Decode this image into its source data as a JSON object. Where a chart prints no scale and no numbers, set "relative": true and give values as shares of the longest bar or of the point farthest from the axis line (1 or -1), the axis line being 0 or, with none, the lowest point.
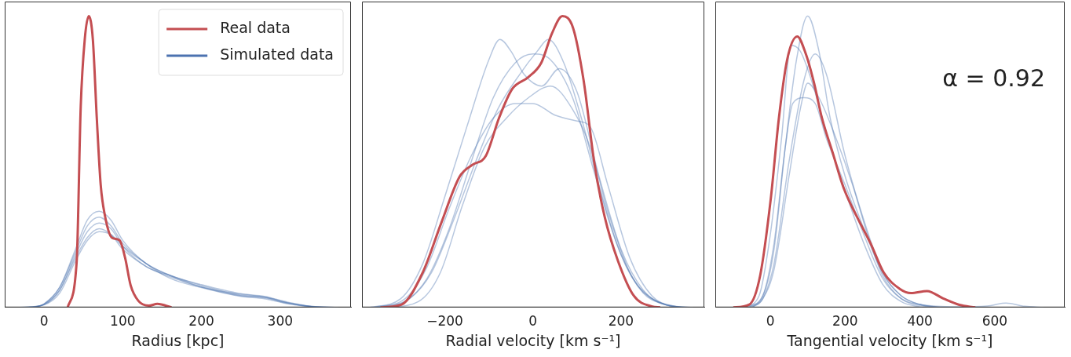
{
  "chart_data": [
    {
      "type": "line",
      "relative": true,
      "xlabel": "Radius [kpc]",
      "xlim": [
        -50,
        390
      ],
      "xticks": [
        0,
        100,
        200,
        300
      ],
      "tick_labels": "x",
      "legend": "top right",
      "series": [
        {
          "name": "Real data",
          "color": "#c44e52",
          "x": [
            30,
            41.5,
            46.6,
            51.7,
            56.8,
            62,
            67,
            72,
            77,
            86,
            96,
            103,
            110,
            120,
            133,
            144,
            162
          ],
          "values": [
            0,
            0.16,
            0.69,
            0.92,
            1.0,
            0.92,
            0.65,
            0.42,
            0.32,
            0.24,
            0.23,
            0.17,
            0.076,
            0.022,
            0.006,
            0.012,
            0
          ]
        },
        {
          "name": "Simulated data",
          "color": "#4c72b0",
          "x": [
            -20,
            0,
            20,
            40,
            55,
            70,
            85,
            100,
            130,
            160,
            200,
            250,
            280,
            310,
            340,
            370
          ],
          "values": [
            0,
            0.01,
            0.06,
            0.17,
            0.24,
            0.27,
            0.25,
            0.2,
            0.14,
            0.105,
            0.07,
            0.04,
            0.035,
            0.015,
            0.003,
            0
          ]
        },
        {
          "color": "#4c72b0",
          "x": [
            -25,
            0,
            20,
            40,
            55,
            70,
            85,
            100,
            130,
            160,
            200,
            250,
            280,
            310,
            340,
            362
          ],
          "values": [
            0,
            0.01,
            0.06,
            0.18,
            0.26,
            0.29,
            0.27,
            0.21,
            0.14,
            0.11,
            0.075,
            0.042,
            0.033,
            0.014,
            0.003,
            0
          ]
        },
        {
          "color": "#4c72b0",
          "x": [
            -15,
            0,
            20,
            40,
            55,
            70,
            85,
            100,
            130,
            160,
            200,
            250,
            280,
            310,
            340,
            356
          ],
          "values": [
            0,
            0.012,
            0.07,
            0.19,
            0.28,
            0.31,
            0.28,
            0.22,
            0.15,
            0.1,
            0.068,
            0.038,
            0.03,
            0.012,
            0.002,
            0
          ]
        },
        {
          "color": "#4c72b0",
          "x": [
            -12,
            0,
            20,
            40,
            55,
            70,
            85,
            100,
            130,
            160,
            200,
            250,
            280,
            310,
            340,
            366
          ],
          "values": [
            0,
            0.012,
            0.07,
            0.2,
            0.3,
            0.33,
            0.3,
            0.23,
            0.15,
            0.11,
            0.07,
            0.045,
            0.036,
            0.016,
            0.003,
            0
          ]
        },
        {
          "color": "#4c72b0",
          "x": [
            -30,
            0,
            20,
            40,
            55,
            70,
            85,
            100,
            130,
            160,
            200,
            250,
            280,
            310,
            340,
            374
          ],
          "values": [
            0,
            0.009,
            0.05,
            0.16,
            0.23,
            0.26,
            0.25,
            0.21,
            0.15,
            0.11,
            0.078,
            0.047,
            0.038,
            0.018,
            0.004,
            0
          ]
        }
      ]
    },
    {
      "type": "line",
      "relative": true,
      "xlabel": "Radial velocity [km s⁻¹]",
      "xlim": [
        -388,
        389
      ],
      "xticks": [
        {
          "value": -200,
          "label": "−200"
        },
        0,
        200
      ],
      "tick_labels": "x",
      "series": [
        {
          "color": "#c44e52",
          "x": [
            -346,
            -298,
            -250,
            -208,
            -166,
            -137,
            -107,
            -77,
            -47,
            -11,
            19,
            43,
            67,
            91,
            115,
            139,
            163,
            193,
            229,
            271,
            289
          ],
          "values": [
            0,
            0.01,
            0.12,
            0.29,
            0.45,
            0.49,
            0.52,
            0.65,
            0.75,
            0.79,
            0.84,
            0.94,
            1.0,
            0.96,
            0.78,
            0.5,
            0.31,
            0.16,
            0.04,
            0.003,
            0
          ]
        },
        {
          "color": "#4c72b0",
          "x": [
            -370,
            -300,
            -250,
            -200,
            -150,
            -100,
            -75,
            -50,
            -20,
            20,
            60,
            100,
            150,
            200,
            250,
            300,
            352
          ],
          "values": [
            0,
            0.03,
            0.15,
            0.38,
            0.62,
            0.85,
            0.92,
            0.88,
            0.8,
            0.76,
            0.82,
            0.74,
            0.45,
            0.2,
            0.06,
            0.01,
            0
          ]
        },
        {
          "color": "#4c72b0",
          "x": [
            -352,
            -280,
            -230,
            -180,
            -130,
            -80,
            -30,
            10,
            35,
            70,
            110,
            150,
            200,
            250,
            300,
            346
          ],
          "values": [
            0,
            0.03,
            0.12,
            0.3,
            0.5,
            0.68,
            0.8,
            0.88,
            0.92,
            0.84,
            0.65,
            0.42,
            0.18,
            0.05,
            0.01,
            0
          ]
        },
        {
          "color": "#4c72b0",
          "x": [
            -362,
            -290,
            -240,
            -190,
            -140,
            -90,
            -40,
            0,
            50,
            100,
            130,
            170,
            220,
            270,
            320,
            364
          ],
          "values": [
            0,
            0.03,
            0.14,
            0.34,
            0.52,
            0.65,
            0.7,
            0.7,
            0.66,
            0.64,
            0.62,
            0.42,
            0.17,
            0.04,
            0.005,
            0
          ]
        },
        {
          "color": "#4c72b0",
          "x": [
            -344,
            -290,
            -240,
            -190,
            -140,
            -90,
            -40,
            0,
            40,
            90,
            140,
            190,
            240,
            290,
            338
          ],
          "values": [
            0,
            0.02,
            0.1,
            0.27,
            0.5,
            0.72,
            0.84,
            0.87,
            0.85,
            0.72,
            0.46,
            0.22,
            0.07,
            0.015,
            0
          ]
        },
        {
          "color": "#4c72b0",
          "x": [
            -330,
            -260,
            -210,
            -160,
            -110,
            -60,
            -10,
            40,
            90,
            130,
            170,
            220,
            270,
            322
          ],
          "values": [
            0,
            0.02,
            0.12,
            0.35,
            0.55,
            0.65,
            0.72,
            0.76,
            0.68,
            0.55,
            0.33,
            0.12,
            0.03,
            0
          ]
        }
      ]
    },
    {
      "type": "line",
      "relative": true,
      "xlabel": "Tangential velocity [km s⁻¹]",
      "xlim": [
        -147,
        787
      ],
      "xticks": [
        0,
        200,
        400,
        600
      ],
      "tick_labels": "x",
      "annotations": [
        "α = 0.92"
      ],
      "series": [
        {
          "color": "#c44e52",
          "x": [
            -99,
            -56,
            -27,
            1,
            23,
            45,
            72,
            95,
            117,
            138,
            167,
            196,
            232,
            268,
            303,
            347,
            376,
            419,
            462,
            505,
            548
          ],
          "values": [
            0,
            0.01,
            0.11,
            0.37,
            0.65,
            0.85,
            0.93,
            0.87,
            0.77,
            0.65,
            0.53,
            0.41,
            0.31,
            0.22,
            0.12,
            0.063,
            0.049,
            0.056,
            0.031,
            0.009,
            0
          ]
        },
        {
          "color": "#4c72b0",
          "x": [
            -64,
            -20,
            10,
            40,
            70,
            100,
            130,
            160,
            200,
            250,
            300,
            350,
            400,
            454
          ],
          "values": [
            0,
            0.04,
            0.2,
            0.55,
            0.85,
            1.0,
            0.88,
            0.65,
            0.45,
            0.27,
            0.12,
            0.04,
            0.01,
            0
          ]
        },
        {
          "color": "#4c72b0",
          "x": [
            -58,
            -20,
            10,
            40,
            60,
            90,
            120,
            150,
            200,
            250,
            300,
            350,
            400,
            500,
            580,
            630,
            680,
            730
          ],
          "values": [
            0,
            0.04,
            0.22,
            0.55,
            0.7,
            0.72,
            0.7,
            0.58,
            0.42,
            0.25,
            0.1,
            0.03,
            0.01,
            0.002,
            0.005,
            0.015,
            0.004,
            0
          ]
        },
        {
          "color": "#4c72b0",
          "x": [
            -70,
            -30,
            0,
            30,
            55,
            80,
            110,
            150,
            200,
            250,
            300,
            350,
            406
          ],
          "values": [
            0,
            0.04,
            0.25,
            0.58,
            0.9,
            0.88,
            0.78,
            0.6,
            0.4,
            0.22,
            0.08,
            0.02,
            0
          ]
        },
        {
          "color": "#4c72b0",
          "x": [
            -52,
            -20,
            10,
            50,
            90,
            120,
            150,
            200,
            250,
            300,
            350,
            400,
            446
          ],
          "values": [
            0,
            0.03,
            0.15,
            0.5,
            0.78,
            0.87,
            0.8,
            0.52,
            0.3,
            0.12,
            0.04,
            0.01,
            0
          ]
        },
        {
          "color": "#4c72b0",
          "x": [
            -48,
            -20,
            10,
            50,
            80,
            100,
            130,
            170,
            220,
            260,
            300,
            350,
            424
          ],
          "values": [
            0,
            0.03,
            0.13,
            0.45,
            0.68,
            0.77,
            0.72,
            0.6,
            0.42,
            0.25,
            0.11,
            0.03,
            0
          ]
        }
      ]
    }
  ]
}
